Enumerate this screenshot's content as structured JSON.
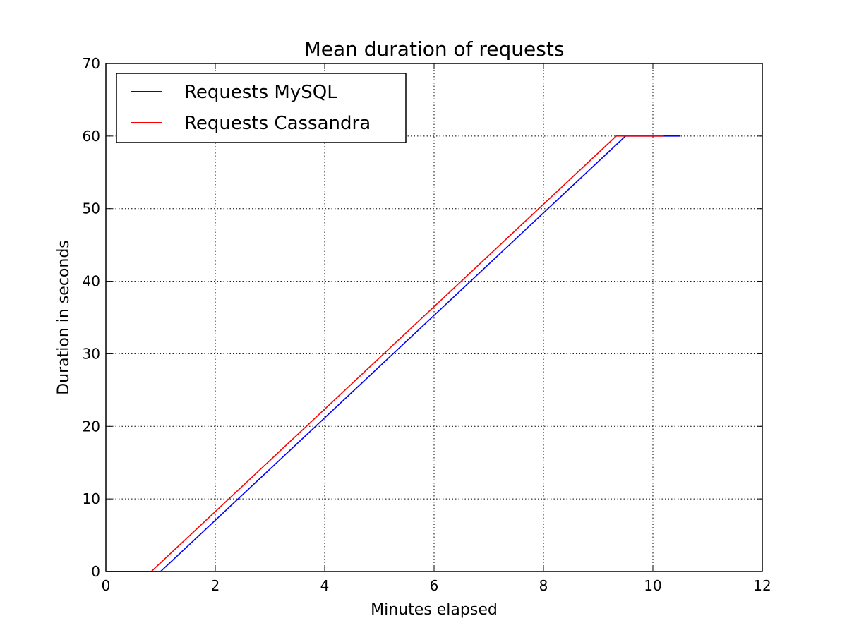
{
  "chart_data": {
    "type": "line",
    "title": "Mean duration of requests",
    "xlabel": "Minutes elapsed",
    "ylabel": "Duration in seconds",
    "xlim": [
      0,
      12
    ],
    "ylim": [
      0,
      70
    ],
    "xticks": [
      0,
      2,
      4,
      6,
      8,
      10,
      12
    ],
    "yticks": [
      0,
      10,
      20,
      30,
      40,
      50,
      60,
      70
    ],
    "grid": true,
    "legend_position": "upper-left",
    "series": [
      {
        "name": "Requests MySQL",
        "color": "#0000ff",
        "x": [
          0,
          1.0,
          9.5,
          10.5
        ],
        "y": [
          0,
          0,
          60,
          60
        ]
      },
      {
        "name": "Requests Cassandra",
        "color": "#ff0000",
        "x": [
          0,
          0.83,
          9.33,
          10.2
        ],
        "y": [
          0,
          0,
          60,
          60
        ]
      }
    ]
  }
}
